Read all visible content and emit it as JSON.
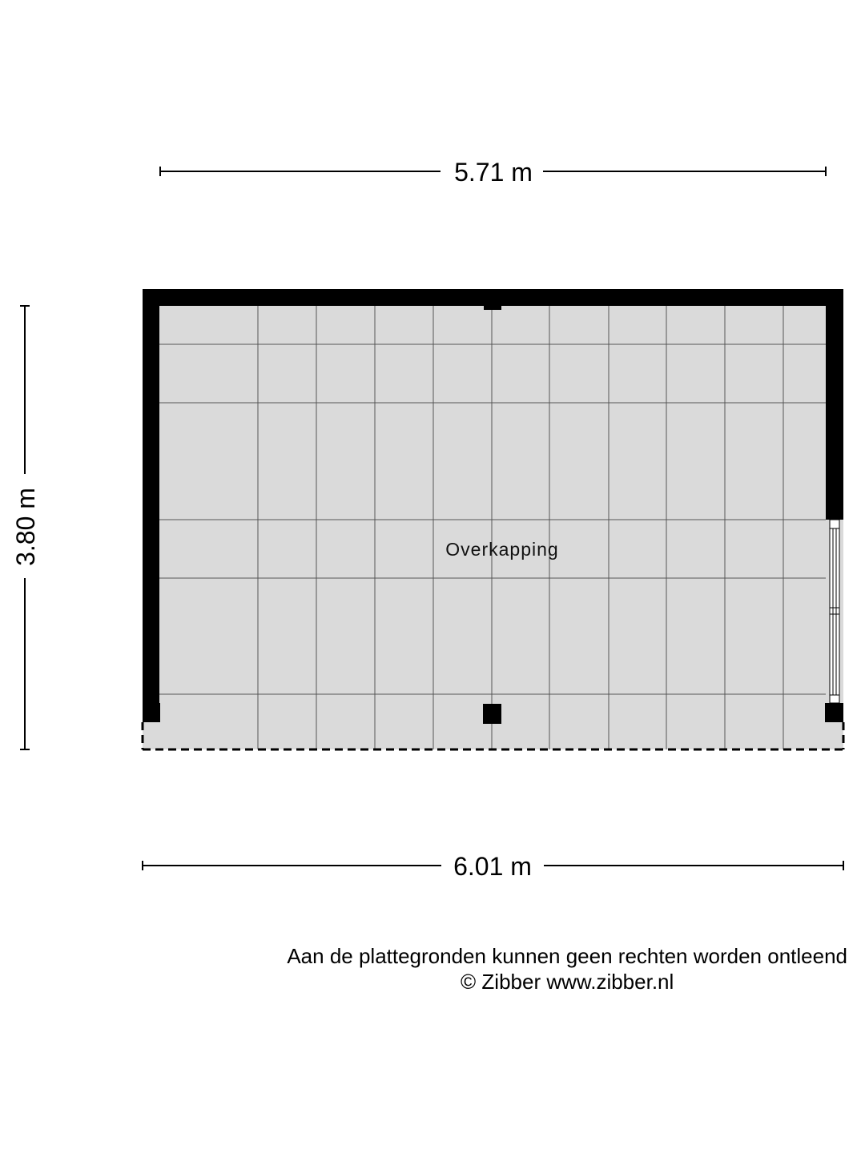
{
  "dimensions": {
    "top_width": "5.71 m",
    "bottom_width": "6.01 m",
    "left_height": "3.80 m"
  },
  "room": {
    "label": "Overkapping",
    "floor_color": "#dadada",
    "wall_color": "#000000"
  },
  "footer": {
    "disclaimer": "Aan de plattegronden kunnen geen rechten worden ontleend",
    "copyright": "© Zibber www.zibber.nl"
  }
}
